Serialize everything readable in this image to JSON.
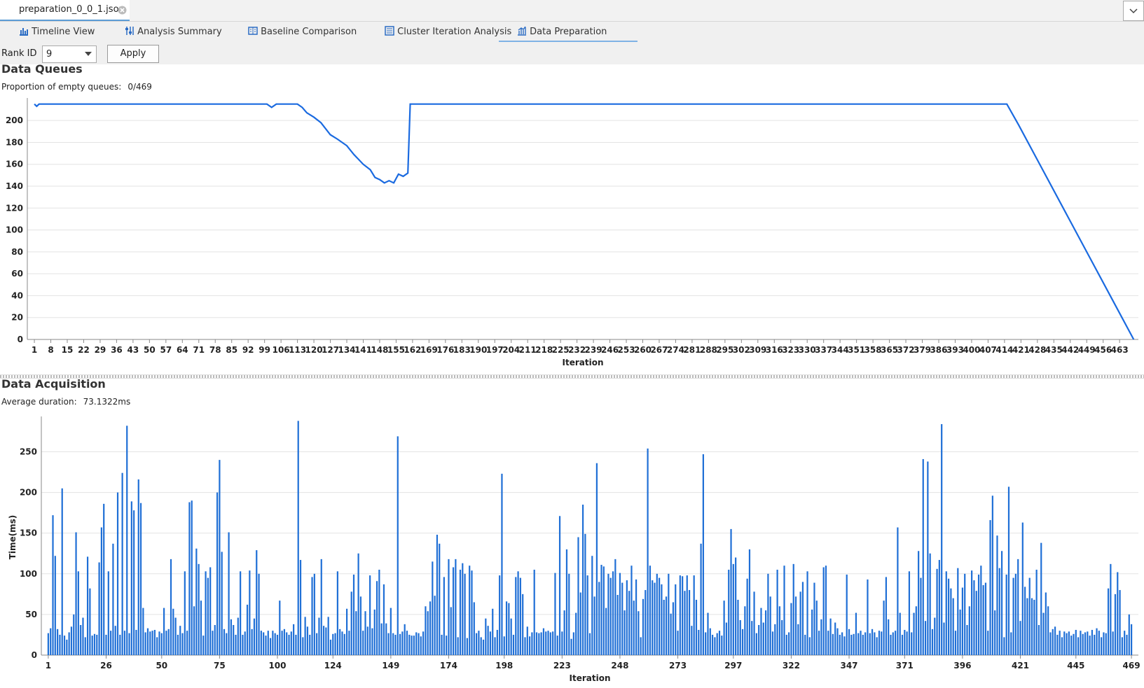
{
  "tab": {
    "title": "preparation_0_0_1.json"
  },
  "nav": [
    "Timeline View",
    "Analysis Summary",
    "Baseline Comparison",
    "Cluster Iteration Analysis",
    "Data Preparation"
  ],
  "toolbar": {
    "label": "Rank ID",
    "selected": "9",
    "button": "Apply"
  },
  "chart_data": [
    {
      "type": "line",
      "title": "Data Queues",
      "stat_label": "Proportion of empty queues:",
      "stat_value": "0/469",
      "x_label": "Iteration",
      "color": "#1a6ae0",
      "grid": true,
      "x": [
        1,
        2,
        3,
        100,
        102,
        104,
        113,
        115,
        117,
        120,
        123,
        127,
        130,
        134,
        137,
        141,
        144,
        146,
        148,
        150,
        152,
        154,
        156,
        158,
        160,
        161,
        415,
        420,
        430,
        440,
        450,
        460,
        469
      ],
      "values": [
        215,
        213,
        215,
        215,
        212,
        215,
        215,
        212,
        207,
        203,
        198,
        187,
        183,
        177,
        169,
        160,
        155,
        148,
        146,
        143,
        145,
        143,
        151,
        149,
        152,
        215,
        215,
        196,
        156,
        116,
        76,
        36,
        0
      ],
      "xlim": [
        -2,
        471
      ],
      "ylim": [
        0,
        218
      ],
      "xticks": [
        1,
        8,
        15,
        22,
        29,
        36,
        43,
        50,
        57,
        64,
        71,
        78,
        85,
        92,
        99,
        106,
        113,
        120,
        127,
        134,
        141,
        148,
        155,
        162,
        169,
        176,
        183,
        190,
        197,
        204,
        211,
        218,
        225,
        232,
        239,
        246,
        253,
        260,
        267,
        274,
        281,
        288,
        295,
        302,
        309,
        316,
        323,
        330,
        337,
        344,
        351,
        358,
        365,
        372,
        379,
        386,
        393,
        400,
        407,
        414,
        421,
        428,
        435,
        442,
        449,
        456,
        463
      ],
      "yticks": [
        0,
        20,
        40,
        60,
        80,
        100,
        120,
        140,
        160,
        180,
        200
      ]
    },
    {
      "type": "bar",
      "title": "Data Acquisition",
      "stat_label": "Average duration:",
      "stat_value": "73.1322ms",
      "x_label": "Iteration",
      "y_label": "Time(ms)",
      "color": "#1f6fd6",
      "grid": true,
      "x": [
        1,
        2,
        3,
        4,
        5,
        6,
        7,
        8,
        9,
        10,
        11,
        12,
        13,
        14,
        15,
        16,
        17,
        18,
        19,
        20,
        21,
        22,
        23,
        24,
        25,
        26,
        27,
        28,
        29,
        30,
        31,
        32,
        33,
        34,
        35,
        36,
        37,
        38,
        39,
        40,
        41,
        42,
        43,
        44,
        45,
        46,
        47,
        48,
        49,
        50,
        51,
        52,
        53,
        54,
        55,
        56,
        57,
        58,
        59,
        60,
        61,
        62,
        63,
        64,
        65,
        66,
        67,
        68,
        69,
        70,
        71,
        72,
        73,
        74,
        75,
        76,
        77,
        78,
        79,
        80,
        81,
        82,
        83,
        84,
        85,
        86,
        87,
        88,
        89,
        90,
        91,
        92,
        93,
        94,
        95,
        96,
        97,
        98,
        99,
        100,
        101,
        102,
        103,
        104,
        105,
        106,
        107,
        108,
        109,
        110,
        111,
        112,
        113,
        114,
        115,
        116,
        117,
        118,
        119,
        120,
        121,
        122,
        123,
        124,
        125,
        126,
        127,
        128,
        129,
        130,
        131,
        132,
        133,
        134,
        135,
        136,
        137,
        138,
        139,
        140,
        141,
        142,
        143,
        144,
        145,
        146,
        147,
        148,
        149,
        150,
        151,
        152,
        153,
        154,
        155,
        156,
        157,
        158,
        159,
        160,
        161,
        162,
        163,
        164,
        165,
        166,
        167,
        168,
        169,
        170,
        171,
        172,
        173,
        174,
        175,
        176,
        177,
        178,
        179,
        180,
        181,
        182,
        183,
        184,
        185,
        186,
        187,
        188,
        189,
        190,
        191,
        192,
        193,
        194,
        195,
        196,
        197,
        198,
        199,
        200,
        201,
        202,
        203,
        204,
        205,
        206,
        207,
        208,
        209,
        210,
        211,
        212,
        213,
        214,
        215,
        216,
        217,
        218,
        219,
        220,
        221,
        222,
        223,
        224,
        225,
        226,
        227,
        228,
        229,
        230,
        231,
        232,
        233,
        234,
        235,
        236,
        237,
        238,
        239,
        240,
        241,
        242,
        243,
        244,
        245,
        246,
        247,
        248,
        249,
        250,
        251,
        252,
        253,
        254,
        255,
        256,
        257,
        258,
        259,
        260,
        261,
        262,
        263,
        264,
        265,
        266,
        267,
        268,
        269,
        270,
        271,
        272,
        273,
        274,
        275,
        276,
        277,
        278,
        279,
        280,
        281,
        282,
        283,
        284,
        285,
        286,
        287,
        288,
        289,
        290,
        291,
        292,
        293,
        294,
        295,
        296,
        297,
        298,
        299,
        300,
        301,
        302,
        303,
        304,
        305,
        306,
        307,
        308,
        309,
        310,
        311,
        312,
        313,
        314,
        315,
        316,
        317,
        318,
        319,
        320,
        321,
        322,
        323,
        324,
        325,
        326,
        327,
        328,
        329,
        330,
        331,
        332,
        333,
        334,
        335,
        336,
        337,
        338,
        339,
        340,
        341,
        342,
        343,
        344,
        345,
        346,
        347,
        348,
        349,
        350,
        351,
        352,
        353,
        354,
        355,
        356,
        357,
        358,
        359,
        360,
        361,
        362,
        363,
        364,
        365,
        366,
        367,
        368,
        369,
        370,
        371,
        372,
        373,
        374,
        375,
        376,
        377,
        378,
        379,
        380,
        381,
        382,
        383,
        384,
        385,
        386,
        387,
        388,
        389,
        390,
        391,
        392,
        393,
        394,
        395,
        396,
        397,
        398,
        399,
        400,
        401,
        402,
        403,
        404,
        405,
        406,
        407,
        408,
        409,
        410,
        411,
        412,
        413,
        414,
        415,
        416,
        417,
        418,
        419,
        420,
        421,
        422,
        423,
        424,
        425,
        426,
        427,
        428,
        429,
        430,
        431,
        432,
        433,
        434,
        435,
        436,
        437,
        438,
        439,
        440,
        441,
        442,
        443,
        444,
        445,
        446,
        447,
        448,
        449,
        450,
        451,
        452,
        453,
        454,
        455,
        456,
        457,
        458,
        459,
        460,
        461,
        462,
        463,
        464,
        465,
        466,
        467,
        468,
        469
      ],
      "values": [
        27,
        33,
        172,
        122,
        32,
        25,
        205,
        24,
        19,
        28,
        35,
        50,
        151,
        103,
        37,
        46,
        22,
        121,
        82,
        24,
        26,
        25,
        114,
        157,
        186,
        25,
        103,
        30,
        137,
        36,
        200,
        25,
        224,
        30,
        282,
        27,
        189,
        178,
        31,
        216,
        187,
        58,
        28,
        33,
        29,
        30,
        31,
        22,
        29,
        27,
        58,
        30,
        32,
        118,
        57,
        46,
        25,
        36,
        27,
        103,
        30,
        188,
        190,
        60,
        131,
        112,
        67,
        24,
        103,
        95,
        108,
        30,
        37,
        200,
        240,
        127,
        32,
        27,
        151,
        44,
        37,
        25,
        46,
        103,
        25,
        29,
        62,
        104,
        32,
        45,
        129,
        100,
        30,
        28,
        24,
        30,
        21,
        30,
        27,
        25,
        67,
        30,
        32,
        28,
        25,
        29,
        38,
        25,
        288,
        117,
        22,
        47,
        35,
        25,
        96,
        100,
        27,
        46,
        118,
        36,
        34,
        47,
        19,
        26,
        27,
        103,
        32,
        29,
        26,
        57,
        30,
        78,
        99,
        54,
        125,
        72,
        30,
        54,
        35,
        98,
        33,
        56,
        91,
        105,
        39,
        87,
        39,
        27,
        58,
        27,
        25,
        269,
        26,
        29,
        38,
        30,
        25,
        24,
        24,
        28,
        27,
        23,
        29,
        60,
        54,
        66,
        115,
        73,
        148,
        137,
        25,
        96,
        24,
        118,
        59,
        108,
        118,
        22,
        105,
        113,
        100,
        21,
        110,
        104,
        65,
        27,
        30,
        22,
        19,
        45,
        36,
        29,
        57,
        22,
        31,
        98,
        223,
        23,
        66,
        64,
        45,
        25,
        96,
        103,
        95,
        75,
        22,
        35,
        23,
        28,
        105,
        28,
        27,
        28,
        33,
        29,
        30,
        28,
        29,
        101,
        24,
        171,
        29,
        55,
        130,
        100,
        20,
        28,
        52,
        145,
        77,
        185,
        149,
        98,
        27,
        122,
        72,
        236,
        90,
        111,
        109,
        58,
        100,
        95,
        103,
        118,
        74,
        101,
        89,
        55,
        92,
        79,
        110,
        67,
        93,
        54,
        22,
        69,
        80,
        254,
        110,
        92,
        89,
        100,
        95,
        87,
        68,
        72,
        100,
        51,
        65,
        87,
        30,
        98,
        97,
        79,
        98,
        80,
        36,
        98,
        68,
        31,
        137,
        247,
        28,
        52,
        33,
        25,
        22,
        27,
        30,
        24,
        67,
        40,
        105,
        155,
        112,
        120,
        68,
        43,
        32,
        60,
        94,
        130,
        42,
        78,
        27,
        37,
        58,
        40,
        55,
        100,
        72,
        29,
        38,
        105,
        60,
        43,
        110,
        25,
        28,
        64,
        112,
        72,
        38,
        78,
        90,
        25,
        103,
        22,
        56,
        89,
        67,
        30,
        44,
        108,
        110,
        30,
        45,
        26,
        40,
        33,
        25,
        28,
        23,
        99,
        32,
        25,
        26,
        52,
        27,
        30,
        25,
        28,
        93,
        27,
        32,
        28,
        22,
        30,
        29,
        67,
        96,
        44,
        25,
        28,
        30,
        157,
        52,
        25,
        31,
        29,
        103,
        28,
        52,
        60,
        128,
        95,
        241,
        42,
        238,
        125,
        32,
        46,
        106,
        117,
        284,
        40,
        103,
        94,
        82,
        70,
        30,
        107,
        56,
        83,
        100,
        37,
        60,
        104,
        92,
        79,
        99,
        110,
        86,
        89,
        30,
        166,
        196,
        55,
        147,
        107,
        128,
        22,
        99,
        207,
        28,
        95,
        100,
        118,
        42,
        163,
        84,
        70,
        95,
        70,
        68,
        105,
        37,
        138,
        52,
        77,
        60,
        28,
        32,
        35,
        25,
        30,
        22,
        29,
        27,
        29,
        24,
        26,
        31,
        22,
        30,
        26,
        28,
        29,
        24,
        31,
        25,
        33,
        30,
        22,
        28,
        27,
        82,
        112,
        29,
        75,
        102,
        80,
        22,
        30,
        25,
        50,
        38
      ],
      "xlim": [
        -2,
        472
      ],
      "ylim": [
        0,
        290
      ],
      "xticks": [
        1,
        26,
        50,
        75,
        100,
        124,
        149,
        174,
        198,
        223,
        248,
        273,
        297,
        322,
        347,
        371,
        396,
        421,
        445,
        469
      ],
      "yticks": [
        0,
        50,
        100,
        150,
        200,
        250
      ]
    }
  ]
}
